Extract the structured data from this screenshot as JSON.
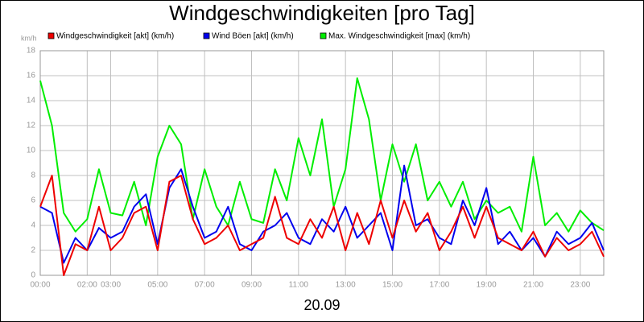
{
  "chart_data": {
    "type": "line",
    "title": "Windgeschwindigkeiten [pro Tag]",
    "subtitle": "20.09",
    "y_label": "km/h",
    "x": [
      0,
      0.5,
      1,
      1.5,
      2,
      2.5,
      3,
      3.5,
      4,
      4.5,
      5,
      5.5,
      6,
      6.5,
      7,
      7.5,
      8,
      8.5,
      9,
      9.5,
      10,
      10.5,
      11,
      11.5,
      12,
      12.5,
      13,
      13.5,
      14,
      14.5,
      15,
      15.5,
      16,
      16.5,
      17,
      17.5,
      18,
      18.5,
      19,
      19.5,
      20,
      20.5,
      21,
      21.5,
      22,
      22.5,
      23,
      23.5,
      24
    ],
    "series": [
      {
        "name": "Windgeschwindigkeit [akt] (km/h)",
        "color": "#ee0000",
        "values": [
          5.5,
          8,
          0,
          2.5,
          2,
          5.5,
          2,
          3,
          5,
          5.5,
          2,
          7.5,
          8,
          4.5,
          2.5,
          3,
          4,
          2,
          2.5,
          3,
          6.3,
          3,
          2.5,
          4.5,
          3,
          5.5,
          2,
          5,
          2.5,
          6,
          3,
          6,
          3.5,
          5,
          2,
          3.5,
          5.5,
          3,
          5.5,
          3,
          2.5,
          2,
          3.5,
          1.5,
          3,
          2,
          2.5,
          3.5,
          1.5
        ]
      },
      {
        "name": "Wind Böen [akt] (km/h)",
        "color": "#0000ee",
        "values": [
          5.5,
          5,
          1,
          3,
          2,
          3.8,
          3,
          3.5,
          5.5,
          6.5,
          2.5,
          7,
          8.5,
          5.5,
          3,
          3.5,
          5.5,
          2.5,
          2,
          3.5,
          4,
          5,
          3,
          2.5,
          4.5,
          3.5,
          5.5,
          3,
          4,
          5,
          2,
          8.8,
          4,
          4.5,
          3,
          2.5,
          6,
          4,
          7,
          2.5,
          3.5,
          2,
          3,
          1.5,
          3.5,
          2.5,
          3,
          4.2,
          2
        ]
      },
      {
        "name": "Max. Windgeschwindigkeit [max] (km/h)",
        "color": "#00ee00",
        "values": [
          15.6,
          12,
          5,
          3.5,
          4.5,
          8.5,
          5,
          4.8,
          7.5,
          4,
          9.5,
          12,
          10.5,
          4.5,
          8.5,
          5.5,
          4,
          7.5,
          4.5,
          4.2,
          8.5,
          6,
          11,
          8,
          12.5,
          5.5,
          8.5,
          15.8,
          12.5,
          6,
          10.5,
          7.5,
          10.5,
          6,
          7.5,
          5.5,
          7.5,
          4.5,
          6,
          5,
          5.5,
          3.5,
          9.5,
          4,
          5,
          3.5,
          5.2,
          4.2,
          3.6
        ]
      }
    ],
    "xlim": [
      0,
      24
    ],
    "xticks": [
      {
        "value": 0,
        "label": "00:00"
      },
      {
        "value": 2,
        "label": "02:00"
      },
      {
        "value": 3,
        "label": "03:00"
      },
      {
        "value": 5,
        "label": "05:00"
      },
      {
        "value": 7,
        "label": "07:00"
      },
      {
        "value": 9,
        "label": "09:00"
      },
      {
        "value": 11,
        "label": "11:00"
      },
      {
        "value": 13,
        "label": "13:00"
      },
      {
        "value": 15,
        "label": "15:00"
      },
      {
        "value": 17,
        "label": "17:00"
      },
      {
        "value": 19,
        "label": "19:00"
      },
      {
        "value": 21,
        "label": "21:00"
      },
      {
        "value": 23,
        "label": "23:00"
      }
    ],
    "ylim": [
      0,
      18
    ],
    "yticks": [
      0,
      2,
      4,
      6,
      8,
      10,
      12,
      14,
      16,
      18
    ],
    "grid": true
  }
}
